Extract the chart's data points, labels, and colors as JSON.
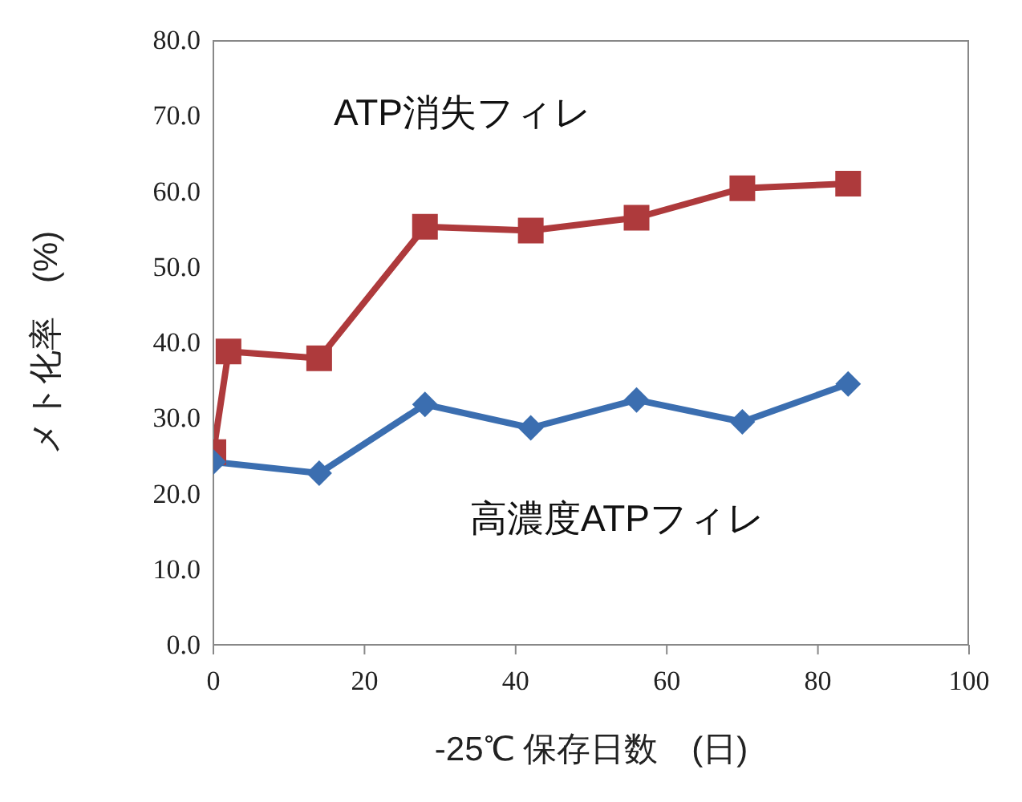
{
  "chart_data": {
    "type": "line",
    "xlabel": "-25℃  保存日数　(日)",
    "ylabel": "メト化率　(%)",
    "xlim": [
      0,
      100
    ],
    "xticks": [
      0,
      20,
      40,
      60,
      80,
      100
    ],
    "ylim": [
      0,
      80
    ],
    "yticks": [
      {
        "value": 0,
        "label": "0.0"
      },
      {
        "value": 10,
        "label": "10.0"
      },
      {
        "value": 20,
        "label": "20.0"
      },
      {
        "value": 30,
        "label": "30.0"
      },
      {
        "value": 40,
        "label": "40.0"
      },
      {
        "value": 50,
        "label": "50.0"
      },
      {
        "value": 60,
        "label": "60.0"
      },
      {
        "value": 70,
        "label": "70.0"
      },
      {
        "value": 80,
        "label": "80.0"
      }
    ],
    "grid": false,
    "series": [
      {
        "name": "ATP消失フィレ",
        "color": "#ae3a3c",
        "marker": "square",
        "x": [
          0,
          2,
          14,
          28,
          42,
          56,
          70,
          84
        ],
        "values": [
          25.5,
          38.8,
          37.9,
          55.3,
          54.8,
          56.5,
          60.4,
          61.0
        ]
      },
      {
        "name": "高濃度ATPフィレ",
        "color": "#3b6eb0",
        "marker": "diamond",
        "x": [
          0,
          14,
          28,
          42,
          56,
          70,
          84
        ],
        "values": [
          24.2,
          22.7,
          31.8,
          28.7,
          32.4,
          29.5,
          34.5
        ]
      }
    ]
  }
}
